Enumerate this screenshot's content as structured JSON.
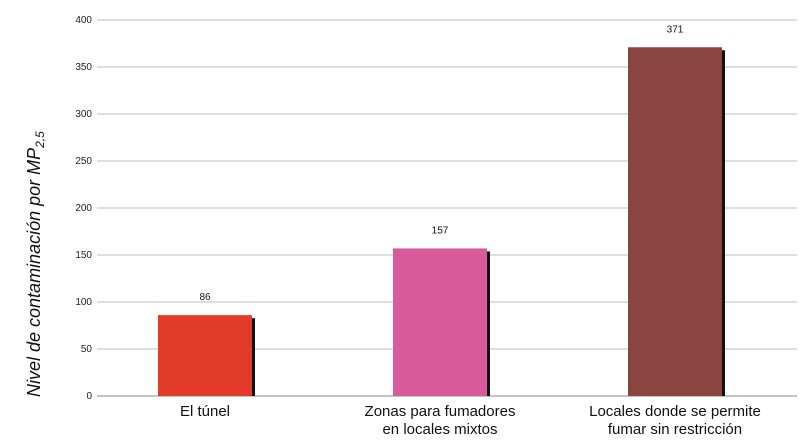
{
  "chart_data": {
    "type": "bar",
    "ylabel": {
      "main": "Nivel de contaminación por MP",
      "sub": "2,5"
    },
    "xlabel": "",
    "ylim": [
      0,
      400
    ],
    "yticks": [
      0,
      50,
      100,
      150,
      200,
      250,
      300,
      350,
      400
    ],
    "grid": true,
    "categories": [
      [
        "El túnel"
      ],
      [
        "Zonas para fumadores",
        "en locales mixtos"
      ],
      [
        "Locales donde se permite",
        "fumar sin restricción"
      ]
    ],
    "values": [
      86,
      157,
      371
    ],
    "value_labels": [
      "86",
      "157",
      "371"
    ],
    "colors": [
      "#e23b2a",
      "#d95a9a",
      "#8b4540"
    ],
    "shadow_color": "#111111",
    "grid_color": "#bdbdbd"
  }
}
